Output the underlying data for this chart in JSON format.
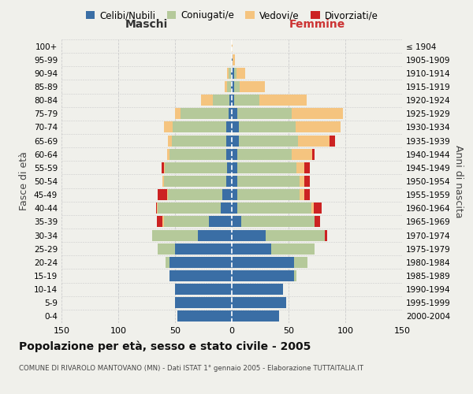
{
  "age_groups": [
    "0-4",
    "5-9",
    "10-14",
    "15-19",
    "20-24",
    "25-29",
    "30-34",
    "35-39",
    "40-44",
    "45-49",
    "50-54",
    "55-59",
    "60-64",
    "65-69",
    "70-74",
    "75-79",
    "80-84",
    "85-89",
    "90-94",
    "95-99",
    "100+"
  ],
  "birth_years": [
    "2000-2004",
    "1995-1999",
    "1990-1994",
    "1985-1989",
    "1980-1984",
    "1975-1979",
    "1970-1974",
    "1965-1969",
    "1960-1964",
    "1955-1959",
    "1950-1954",
    "1945-1949",
    "1940-1944",
    "1935-1939",
    "1930-1934",
    "1925-1929",
    "1920-1924",
    "1915-1919",
    "1910-1914",
    "1905-1909",
    "≤ 1904"
  ],
  "colors": {
    "celibi": "#3a6ea5",
    "coniugati": "#b5c99a",
    "vedovi": "#f5c47f",
    "divorziati": "#cc2222"
  },
  "males": {
    "celibi": [
      48,
      50,
      50,
      55,
      55,
      50,
      30,
      20,
      10,
      8,
      5,
      4,
      5,
      5,
      5,
      3,
      2,
      1,
      1,
      0,
      0
    ],
    "coniugati": [
      0,
      0,
      0,
      0,
      3,
      15,
      40,
      40,
      55,
      48,
      55,
      55,
      50,
      48,
      47,
      42,
      15,
      3,
      2,
      0,
      0
    ],
    "vedovi": [
      0,
      0,
      0,
      0,
      0,
      0,
      0,
      1,
      1,
      1,
      1,
      1,
      2,
      3,
      8,
      5,
      10,
      2,
      1,
      0,
      0
    ],
    "divorziati": [
      0,
      0,
      0,
      0,
      0,
      0,
      0,
      5,
      1,
      8,
      0,
      2,
      0,
      0,
      0,
      0,
      0,
      0,
      0,
      0,
      0
    ]
  },
  "females": {
    "celibi": [
      42,
      48,
      45,
      55,
      55,
      35,
      30,
      8,
      5,
      5,
      5,
      5,
      5,
      6,
      6,
      5,
      2,
      2,
      2,
      1,
      0
    ],
    "coniugati": [
      0,
      0,
      0,
      2,
      12,
      38,
      52,
      65,
      65,
      55,
      55,
      52,
      48,
      52,
      50,
      48,
      22,
      5,
      2,
      0,
      0
    ],
    "vedovi": [
      0,
      0,
      0,
      0,
      0,
      0,
      0,
      0,
      2,
      4,
      4,
      7,
      18,
      28,
      40,
      45,
      42,
      22,
      8,
      2,
      1
    ],
    "divorziati": [
      0,
      0,
      0,
      0,
      0,
      0,
      2,
      5,
      7,
      5,
      5,
      5,
      2,
      5,
      0,
      0,
      0,
      0,
      0,
      0,
      0
    ]
  },
  "title": "Popolazione per età, sesso e stato civile - 2005",
  "subtitle": "COMUNE DI RIVAROLO MANTOVANO (MN) - Dati ISTAT 1° gennaio 2005 - Elaborazione TUTTAITALIA.IT",
  "xlabel_maschi": "Maschi",
  "xlabel_femmine": "Femmine",
  "ylabel_left": "Fasce di età",
  "ylabel_right": "Anni di nascita",
  "xlim": 150,
  "legend_labels": [
    "Celibi/Nubili",
    "Coniugati/e",
    "Vedovi/e",
    "Divorziati/e"
  ],
  "background_color": "#f0f0eb",
  "grid_color": "#cccccc"
}
